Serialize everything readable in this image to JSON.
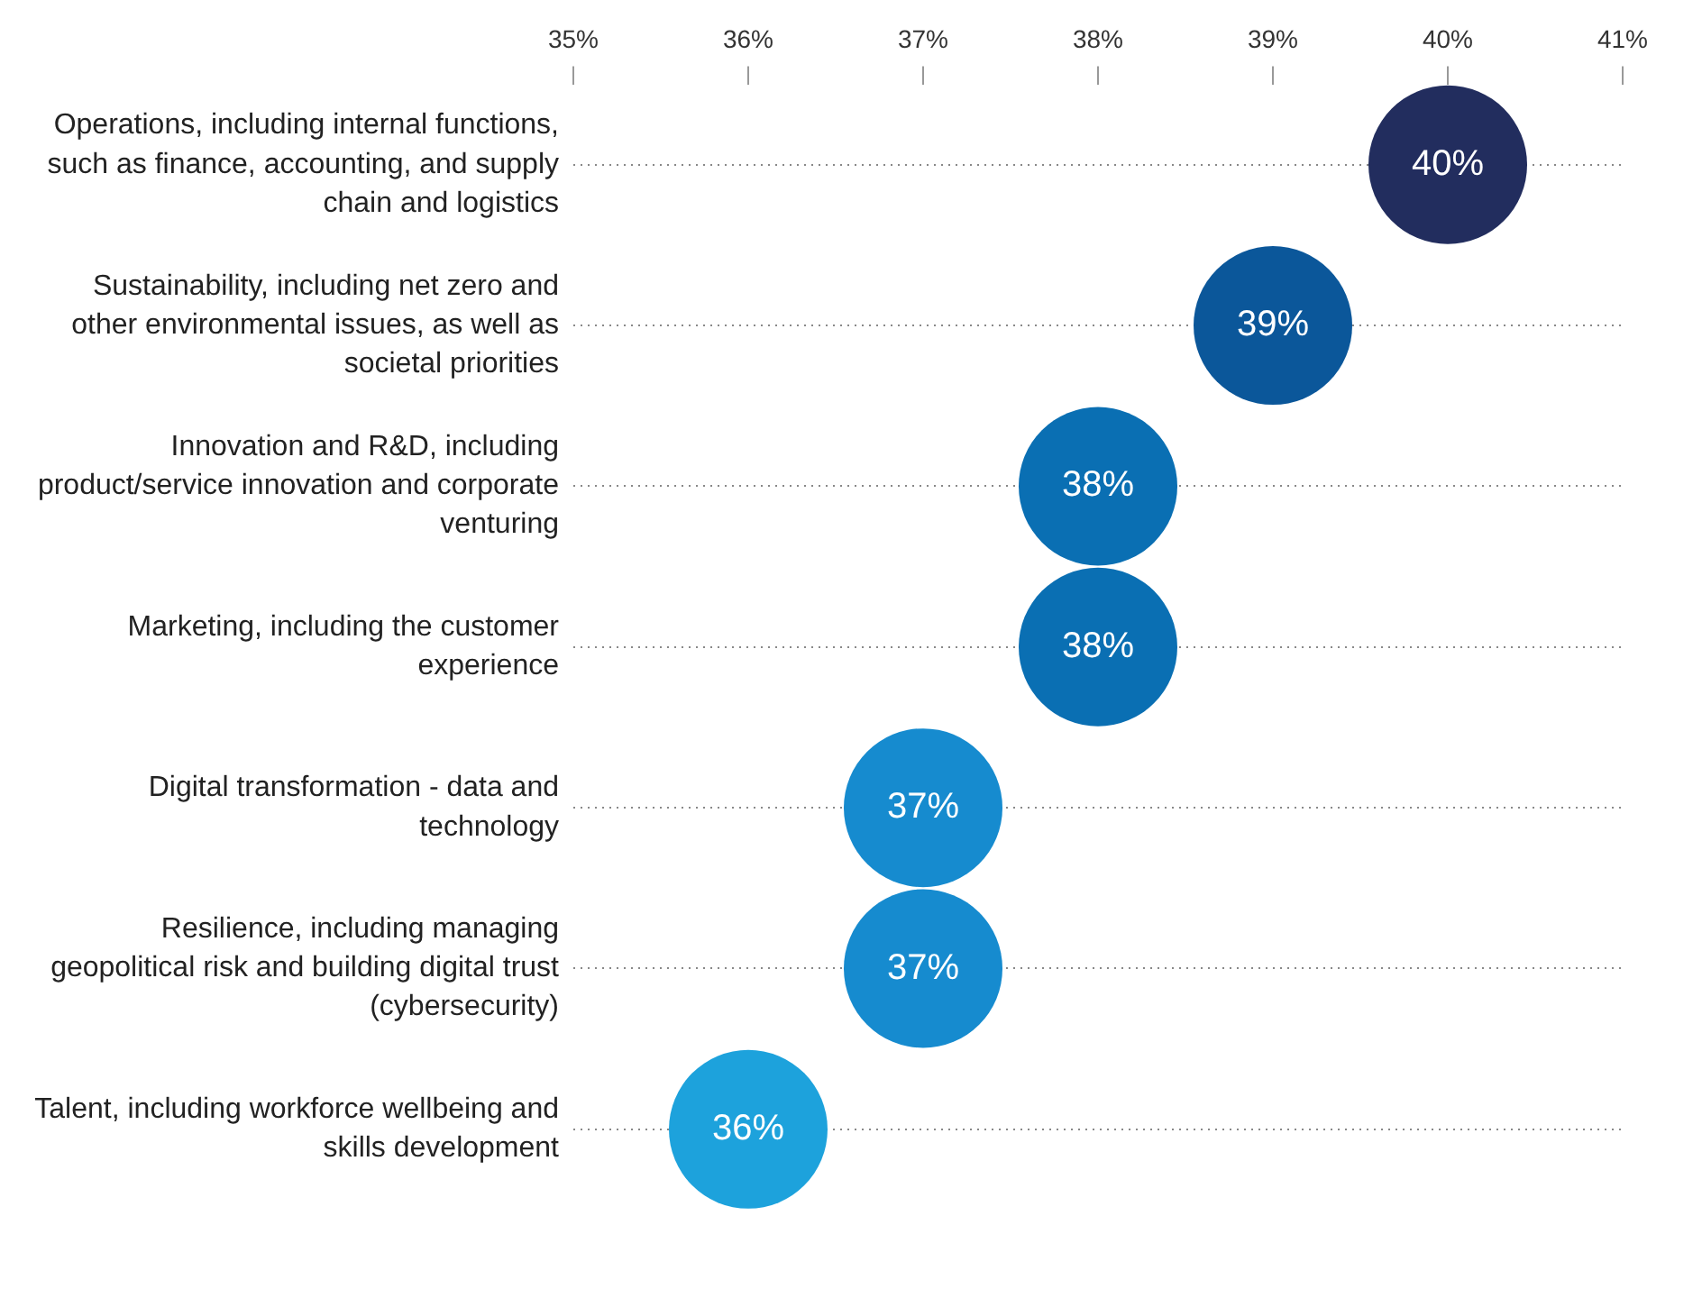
{
  "chart_data": {
    "type": "scatter",
    "orientation": "horizontal",
    "categories": [
      "Operations, including internal functions, such as finance, accounting, and supply chain and logistics",
      "Sustainability, including net zero and other environmental issues, as well as societal priorities",
      "Innovation and R&D, including product/service innovation and corporate venturing",
      "Marketing, including the customer experience",
      "Digital transformation - data and technology",
      "Resilience, including managing geopolitical risk and building digital trust (cybersecurity)",
      "Talent, including workforce wellbeing and skills development"
    ],
    "values": [
      40,
      39,
      38,
      38,
      37,
      37,
      36
    ],
    "value_labels": [
      "40%",
      "39%",
      "38%",
      "38%",
      "37%",
      "37%",
      "36%"
    ],
    "colors": [
      "#222d5e",
      "#0b579a",
      "#0a6fb3",
      "#0a6fb3",
      "#168bcf",
      "#168bcf",
      "#1da2dc"
    ],
    "xlim": [
      35,
      41
    ],
    "xticks": [
      {
        "value": 35,
        "label": "35%"
      },
      {
        "value": 36,
        "label": "36%"
      },
      {
        "value": 37,
        "label": "37%"
      },
      {
        "value": 38,
        "label": "38%"
      },
      {
        "value": 39,
        "label": "39%"
      },
      {
        "value": 40,
        "label": "40%"
      },
      {
        "value": 41,
        "label": "41%"
      }
    ],
    "grid": "y",
    "legend": false,
    "marker": "circle"
  }
}
